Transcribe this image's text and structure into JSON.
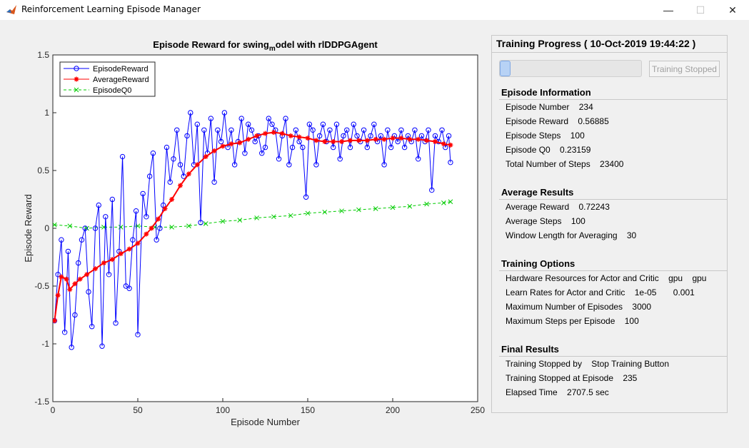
{
  "window": {
    "title": "Reinforcement Learning Episode Manager",
    "minimize": "—",
    "maximize": "☐",
    "close": "✕"
  },
  "chart_data": {
    "type": "line",
    "title": "Episode Reward for swing_model with rlDDPGAgent",
    "title_parts": {
      "pre": "Episode Reward for swing",
      "sub": "m",
      "post": "odel with rlDDPGAgent"
    },
    "xlabel": "Episode Number",
    "ylabel": "Episode Reward",
    "xlim": [
      0,
      250
    ],
    "ylim": [
      -1.5,
      1.5
    ],
    "xticks": [
      "0",
      "50",
      "100",
      "150",
      "200",
      "250"
    ],
    "yticks": [
      "-1.5",
      "-1",
      "-0.5",
      "0",
      "0.5",
      "1",
      "1.5"
    ],
    "legend_position": "top-left",
    "grid": false,
    "series": [
      {
        "name": "EpisodeReward",
        "color": "#0000ff",
        "marker": "o",
        "x": [
          1,
          3,
          5,
          7,
          9,
          11,
          13,
          15,
          17,
          19,
          21,
          23,
          25,
          27,
          29,
          31,
          33,
          35,
          37,
          39,
          41,
          43,
          45,
          47,
          49,
          50,
          53,
          55,
          57,
          59,
          61,
          63,
          65,
          67,
          69,
          71,
          73,
          75,
          77,
          79,
          81,
          83,
          85,
          87,
          89,
          91,
          93,
          95,
          97,
          99,
          101,
          103,
          105,
          107,
          109,
          111,
          113,
          115,
          117,
          119,
          121,
          123,
          125,
          127,
          129,
          131,
          133,
          135,
          137,
          139,
          141,
          143,
          145,
          147,
          149,
          151,
          153,
          155,
          157,
          159,
          161,
          163,
          165,
          167,
          169,
          171,
          173,
          175,
          177,
          179,
          181,
          183,
          185,
          187,
          189,
          191,
          193,
          195,
          197,
          199,
          201,
          203,
          205,
          207,
          209,
          211,
          213,
          215,
          217,
          219,
          221,
          223,
          225,
          227,
          229,
          231,
          233,
          234
        ],
        "y": [
          -0.8,
          -0.4,
          -0.1,
          -0.9,
          -0.2,
          -1.03,
          -0.75,
          -0.3,
          -0.1,
          0.0,
          -0.55,
          -0.85,
          0.0,
          0.2,
          -1.02,
          0.1,
          -0.4,
          0.25,
          -0.82,
          -0.2,
          0.62,
          -0.5,
          -0.52,
          -0.1,
          0.15,
          -0.92,
          0.3,
          0.1,
          0.45,
          0.65,
          -0.1,
          0.0,
          0.2,
          0.7,
          0.4,
          0.6,
          0.85,
          0.55,
          0.45,
          0.8,
          1.0,
          0.55,
          0.9,
          0.05,
          0.85,
          0.65,
          0.95,
          0.4,
          0.85,
          0.75,
          1.0,
          0.7,
          0.85,
          0.55,
          0.75,
          0.95,
          0.65,
          0.9,
          0.85,
          0.75,
          0.8,
          0.65,
          0.7,
          0.95,
          0.9,
          0.85,
          0.6,
          0.8,
          0.95,
          0.55,
          0.7,
          0.85,
          0.75,
          0.7,
          0.27,
          0.9,
          0.85,
          0.55,
          0.8,
          0.9,
          0.75,
          0.85,
          0.7,
          0.9,
          0.6,
          0.8,
          0.85,
          0.7,
          0.9,
          0.8,
          0.75,
          0.85,
          0.7,
          0.8,
          0.9,
          0.75,
          0.8,
          0.55,
          0.85,
          0.7,
          0.8,
          0.75,
          0.85,
          0.7,
          0.8,
          0.75,
          0.85,
          0.6,
          0.8,
          0.75,
          0.85,
          0.33,
          0.8,
          0.75,
          0.85,
          0.7,
          0.8,
          0.57
        ]
      },
      {
        "name": "AverageReward",
        "color": "#ff0000",
        "marker": "*",
        "x": [
          1,
          3,
          5,
          8,
          10,
          13,
          16,
          20,
          25,
          30,
          35,
          40,
          45,
          50,
          55,
          58,
          62,
          66,
          70,
          75,
          80,
          85,
          90,
          95,
          100,
          105,
          110,
          115,
          120,
          125,
          130,
          135,
          140,
          145,
          150,
          155,
          160,
          165,
          170,
          175,
          180,
          185,
          190,
          195,
          200,
          205,
          210,
          215,
          220,
          225,
          230,
          234
        ],
        "y": [
          -0.8,
          -0.58,
          -0.42,
          -0.44,
          -0.53,
          -0.48,
          -0.44,
          -0.4,
          -0.35,
          -0.3,
          -0.27,
          -0.22,
          -0.18,
          -0.13,
          -0.05,
          0.0,
          0.08,
          0.17,
          0.25,
          0.37,
          0.47,
          0.55,
          0.62,
          0.67,
          0.71,
          0.73,
          0.74,
          0.77,
          0.8,
          0.82,
          0.83,
          0.82,
          0.8,
          0.79,
          0.78,
          0.76,
          0.75,
          0.75,
          0.75,
          0.76,
          0.76,
          0.76,
          0.77,
          0.77,
          0.78,
          0.78,
          0.77,
          0.77,
          0.76,
          0.75,
          0.73,
          0.72
        ]
      },
      {
        "name": "EpisodeQ0",
        "color": "#00cc00",
        "marker": "x",
        "x": [
          1,
          10,
          20,
          30,
          40,
          50,
          60,
          70,
          80,
          90,
          100,
          110,
          120,
          130,
          140,
          150,
          160,
          170,
          180,
          190,
          200,
          210,
          220,
          230,
          234
        ],
        "y": [
          0.03,
          0.02,
          0.0,
          0.01,
          0.01,
          0.02,
          0.01,
          0.01,
          0.02,
          0.04,
          0.06,
          0.07,
          0.09,
          0.1,
          0.11,
          0.13,
          0.14,
          0.15,
          0.16,
          0.17,
          0.18,
          0.19,
          0.21,
          0.22,
          0.23
        ]
      }
    ]
  },
  "progress": {
    "title": "Training Progress ( 10-Oct-2019 19:44:22 )",
    "fraction": 0.078,
    "stop_button": "Training Stopped"
  },
  "sections": {
    "episode": {
      "heading": "Episode Information",
      "rows": [
        "Episode Number    234",
        "Episode Reward    0.56885",
        "Episode Steps    100",
        "Episode Q0    0.23159",
        "Total Number of Steps    23400"
      ]
    },
    "average": {
      "heading": "Average Results",
      "rows": [
        "Average Reward    0.72243",
        "Average Steps    100",
        "Window Length for Averaging    30"
      ]
    },
    "options": {
      "heading": "Training Options",
      "rows": [
        "Hardware Resources for Actor and Critic    gpu    gpu",
        "Learn Rates for Actor and Critic    1e-05       0.001",
        "Maximum Number of Episodes    3000",
        "Maximum Steps per Episode    100"
      ]
    },
    "final": {
      "heading": "Final Results",
      "rows": [
        "Training Stopped by    Stop Training Button",
        "Training Stopped at Episode    235",
        "Elapsed Time    2707.5 sec"
      ]
    }
  }
}
